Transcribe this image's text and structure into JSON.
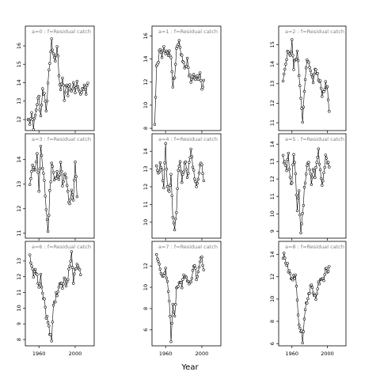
{
  "chart_data": {
    "type": "line",
    "xlabel": "Year",
    "x_tick_labels": [
      "1960",
      "2000"
    ],
    "x_ticks": [
      1960,
      2000
    ],
    "xlim": [
      1945,
      2021
    ],
    "colors": {
      "line": "#000000",
      "strip_text": "#808080",
      "frame": "#000000"
    },
    "panels": [
      {
        "label": "a=0  :  f=Residual catch",
        "ylim": [
          11.4,
          16.6
        ],
        "yticks": [
          12,
          13,
          14,
          15,
          16
        ],
        "anchors": [
          [
            1948,
            12.0
          ],
          [
            1950,
            11.9
          ],
          [
            1952,
            12.4
          ],
          [
            1954,
            11.6
          ],
          [
            1956,
            12.2
          ],
          [
            1958,
            12.9
          ],
          [
            1960,
            13.2
          ],
          [
            1962,
            12.2
          ],
          [
            1964,
            13.6
          ],
          [
            1966,
            13.4
          ],
          [
            1968,
            12.6
          ],
          [
            1970,
            13.8
          ],
          [
            1972,
            15.2
          ],
          [
            1974,
            16.2
          ],
          [
            1976,
            15.6
          ],
          [
            1978,
            15.1
          ],
          [
            1980,
            16.1
          ],
          [
            1982,
            14.4
          ],
          [
            1984,
            13.6
          ],
          [
            1986,
            14.4
          ],
          [
            1988,
            13.1
          ],
          [
            1990,
            14.0
          ],
          [
            1992,
            13.4
          ],
          [
            1994,
            13.9
          ],
          [
            1996,
            13.5
          ],
          [
            1998,
            13.9
          ],
          [
            2000,
            13.6
          ],
          [
            2002,
            14.1
          ],
          [
            2004,
            13.8
          ],
          [
            2006,
            13.3
          ],
          [
            2008,
            13.5
          ],
          [
            2010,
            13.9
          ],
          [
            2012,
            13.4
          ],
          [
            2014,
            14.0
          ]
        ]
      },
      {
        "label": "a=3  :  f=Residual catch",
        "ylim": [
          10.8,
          14.7
        ],
        "yticks": [
          11,
          12,
          13,
          14
        ],
        "anchors": [
          [
            1950,
            13.0
          ],
          [
            1952,
            13.6
          ],
          [
            1954,
            13.8
          ],
          [
            1956,
            13.5
          ],
          [
            1958,
            14.1
          ],
          [
            1960,
            12.6
          ],
          [
            1962,
            14.5
          ],
          [
            1964,
            13.8
          ],
          [
            1966,
            13.2
          ],
          [
            1968,
            12.0
          ],
          [
            1970,
            11.0
          ],
          [
            1972,
            12.6
          ],
          [
            1974,
            13.9
          ],
          [
            1976,
            13.5
          ],
          [
            1978,
            13.1
          ],
          [
            1980,
            13.4
          ],
          [
            1982,
            13.2
          ],
          [
            1984,
            13.8
          ],
          [
            1986,
            13.0
          ],
          [
            1988,
            13.5
          ],
          [
            1990,
            13.2
          ],
          [
            1992,
            12.6
          ],
          [
            1994,
            12.1
          ],
          [
            1996,
            12.9
          ],
          [
            1998,
            12.5
          ],
          [
            2000,
            13.8
          ],
          [
            2002,
            12.6
          ]
        ]
      },
      {
        "label": "a=6  :  f=Residual catch",
        "ylim": [
          7.6,
          13.7
        ],
        "yticks": [
          8,
          9,
          10,
          11,
          12,
          13
        ],
        "anchors": [
          [
            1950,
            13.4
          ],
          [
            1952,
            12.8
          ],
          [
            1954,
            12.2
          ],
          [
            1956,
            12.6
          ],
          [
            1958,
            12.0
          ],
          [
            1960,
            11.5
          ],
          [
            1962,
            12.1
          ],
          [
            1964,
            11.0
          ],
          [
            1966,
            10.6
          ],
          [
            1968,
            9.6
          ],
          [
            1970,
            9.1
          ],
          [
            1972,
            8.4
          ],
          [
            1974,
            7.8
          ],
          [
            1976,
            10.3
          ],
          [
            1978,
            10.6
          ],
          [
            1980,
            11.0
          ],
          [
            1982,
            11.5
          ],
          [
            1984,
            11.8
          ],
          [
            1986,
            11.3
          ],
          [
            1988,
            11.9
          ],
          [
            1990,
            11.4
          ],
          [
            1992,
            12.0
          ],
          [
            1994,
            12.6
          ],
          [
            1996,
            13.4
          ],
          [
            1998,
            11.6
          ],
          [
            2000,
            12.3
          ],
          [
            2002,
            12.8
          ],
          [
            2004,
            12.4
          ],
          [
            2006,
            12.1
          ]
        ]
      },
      {
        "label": "a=1  :  f=Residual catch",
        "ylim": [
          7.8,
          16.1
        ],
        "yticks": [
          8,
          10,
          12,
          14,
          16
        ],
        "anchors": [
          [
            1948,
            8.0
          ],
          [
            1950,
            13.2
          ],
          [
            1952,
            14.0
          ],
          [
            1954,
            14.8
          ],
          [
            1956,
            14.2
          ],
          [
            1958,
            14.9
          ],
          [
            1960,
            14.5
          ],
          [
            1962,
            14.4
          ],
          [
            1964,
            14.8
          ],
          [
            1966,
            13.8
          ],
          [
            1968,
            11.8
          ],
          [
            1970,
            12.6
          ],
          [
            1972,
            14.9
          ],
          [
            1974,
            15.6
          ],
          [
            1976,
            15.0
          ],
          [
            1978,
            14.4
          ],
          [
            1980,
            13.6
          ],
          [
            1982,
            13.2
          ],
          [
            1984,
            13.8
          ],
          [
            1986,
            12.6
          ],
          [
            1988,
            12.2
          ],
          [
            1990,
            12.5
          ],
          [
            1992,
            12.3
          ],
          [
            1994,
            12.7
          ],
          [
            1996,
            12.4
          ],
          [
            1998,
            12.8
          ],
          [
            2000,
            11.7
          ],
          [
            2002,
            12.0
          ]
        ]
      },
      {
        "label": "a=4  :  f=Residual catch",
        "ylim": [
          9.1,
          14.5
        ],
        "yticks": [
          10,
          11,
          12,
          13,
          14
        ],
        "anchors": [
          [
            1950,
            13.2
          ],
          [
            1952,
            12.6
          ],
          [
            1954,
            13.4
          ],
          [
            1956,
            13.0
          ],
          [
            1958,
            12.1
          ],
          [
            1960,
            14.4
          ],
          [
            1962,
            12.0
          ],
          [
            1964,
            11.8
          ],
          [
            1966,
            12.6
          ],
          [
            1968,
            10.4
          ],
          [
            1970,
            9.4
          ],
          [
            1972,
            10.6
          ],
          [
            1974,
            12.8
          ],
          [
            1976,
            13.6
          ],
          [
            1978,
            12.4
          ],
          [
            1980,
            12.8
          ],
          [
            1982,
            13.5
          ],
          [
            1984,
            12.6
          ],
          [
            1986,
            13.2
          ],
          [
            1988,
            14.0
          ],
          [
            1990,
            13.2
          ],
          [
            1992,
            12.6
          ],
          [
            1994,
            11.8
          ],
          [
            1996,
            12.5
          ],
          [
            1998,
            13.2
          ],
          [
            2000,
            13.4
          ],
          [
            2002,
            12.2
          ]
        ]
      },
      {
        "label": "a=7  :  f=Residual catch",
        "ylim": [
          4.5,
          13.5
        ],
        "yticks": [
          6,
          8,
          10,
          12
        ],
        "anchors": [
          [
            1950,
            12.9
          ],
          [
            1952,
            12.4
          ],
          [
            1954,
            11.8
          ],
          [
            1956,
            11.4
          ],
          [
            1958,
            10.8
          ],
          [
            1960,
            11.5
          ],
          [
            1962,
            10.3
          ],
          [
            1964,
            9.0
          ],
          [
            1966,
            5.0
          ],
          [
            1968,
            8.6
          ],
          [
            1970,
            7.4
          ],
          [
            1972,
            9.6
          ],
          [
            1974,
            10.0
          ],
          [
            1976,
            10.8
          ],
          [
            1978,
            10.2
          ],
          [
            1980,
            11.3
          ],
          [
            1982,
            11.0
          ],
          [
            1984,
            10.8
          ],
          [
            1986,
            10.2
          ],
          [
            1988,
            10.8
          ],
          [
            1990,
            11.6
          ],
          [
            1992,
            12.4
          ],
          [
            1994,
            11.0
          ],
          [
            1996,
            11.6
          ],
          [
            1998,
            12.3
          ],
          [
            2000,
            12.6
          ],
          [
            2002,
            12.0
          ]
        ]
      },
      {
        "label": "a=2  :  f=Residual catch",
        "ylim": [
          10.6,
          15.5
        ],
        "yticks": [
          11,
          12,
          13,
          14,
          15
        ],
        "anchors": [
          [
            1950,
            13.0
          ],
          [
            1952,
            13.6
          ],
          [
            1954,
            14.2
          ],
          [
            1956,
            14.8
          ],
          [
            1958,
            14.4
          ],
          [
            1960,
            15.2
          ],
          [
            1962,
            13.8
          ],
          [
            1964,
            14.2
          ],
          [
            1966,
            14.6
          ],
          [
            1968,
            13.6
          ],
          [
            1970,
            12.4
          ],
          [
            1972,
            11.2
          ],
          [
            1974,
            12.6
          ],
          [
            1976,
            13.8
          ],
          [
            1978,
            14.3
          ],
          [
            1980,
            14.0
          ],
          [
            1982,
            13.6
          ],
          [
            1984,
            13.2
          ],
          [
            1986,
            13.9
          ],
          [
            1988,
            13.6
          ],
          [
            1990,
            13.2
          ],
          [
            1992,
            13.0
          ],
          [
            1994,
            12.4
          ],
          [
            1996,
            12.6
          ],
          [
            1998,
            13.0
          ],
          [
            2000,
            12.8
          ],
          [
            2002,
            11.6
          ]
        ]
      },
      {
        "label": "a=5  :  f=Residual catch",
        "ylim": [
          8.6,
          14.1
        ],
        "yticks": [
          9,
          10,
          11,
          12,
          13,
          14
        ],
        "anchors": [
          [
            1950,
            13.2
          ],
          [
            1952,
            13.0
          ],
          [
            1954,
            12.6
          ],
          [
            1956,
            13.4
          ],
          [
            1958,
            12.0
          ],
          [
            1960,
            11.8
          ],
          [
            1962,
            13.6
          ],
          [
            1964,
            12.4
          ],
          [
            1966,
            10.2
          ],
          [
            1968,
            11.4
          ],
          [
            1970,
            8.9
          ],
          [
            1972,
            10.0
          ],
          [
            1974,
            11.4
          ],
          [
            1976,
            12.2
          ],
          [
            1978,
            13.1
          ],
          [
            1980,
            12.4
          ],
          [
            1982,
            11.8
          ],
          [
            1984,
            12.6
          ],
          [
            1986,
            12.0
          ],
          [
            1988,
            13.0
          ],
          [
            1990,
            13.6
          ],
          [
            1992,
            12.4
          ],
          [
            1994,
            11.6
          ],
          [
            1996,
            12.3
          ],
          [
            1998,
            13.4
          ],
          [
            2000,
            13.1
          ],
          [
            2002,
            12.8
          ]
        ]
      },
      {
        "label": "a=8  :  f=Residual catch",
        "ylim": [
          5.8,
          14.4
        ],
        "yticks": [
          6,
          8,
          10,
          12,
          14
        ],
        "anchors": [
          [
            1950,
            14.0
          ],
          [
            1952,
            13.6
          ],
          [
            1954,
            13.2
          ],
          [
            1956,
            12.6
          ],
          [
            1958,
            12.2
          ],
          [
            1960,
            11.6
          ],
          [
            1962,
            12.4
          ],
          [
            1964,
            12.0
          ],
          [
            1966,
            9.8
          ],
          [
            1968,
            8.0
          ],
          [
            1970,
            7.2
          ],
          [
            1972,
            6.4
          ],
          [
            1974,
            8.4
          ],
          [
            1976,
            9.6
          ],
          [
            1978,
            10.2
          ],
          [
            1980,
            10.8
          ],
          [
            1982,
            11.6
          ],
          [
            1984,
            10.4
          ],
          [
            1986,
            10.0
          ],
          [
            1988,
            10.2
          ],
          [
            1990,
            11.4
          ],
          [
            1992,
            12.0
          ],
          [
            1994,
            11.8
          ],
          [
            1996,
            11.6
          ],
          [
            1998,
            12.4
          ],
          [
            2000,
            12.6
          ],
          [
            2002,
            12.8
          ]
        ]
      }
    ]
  }
}
